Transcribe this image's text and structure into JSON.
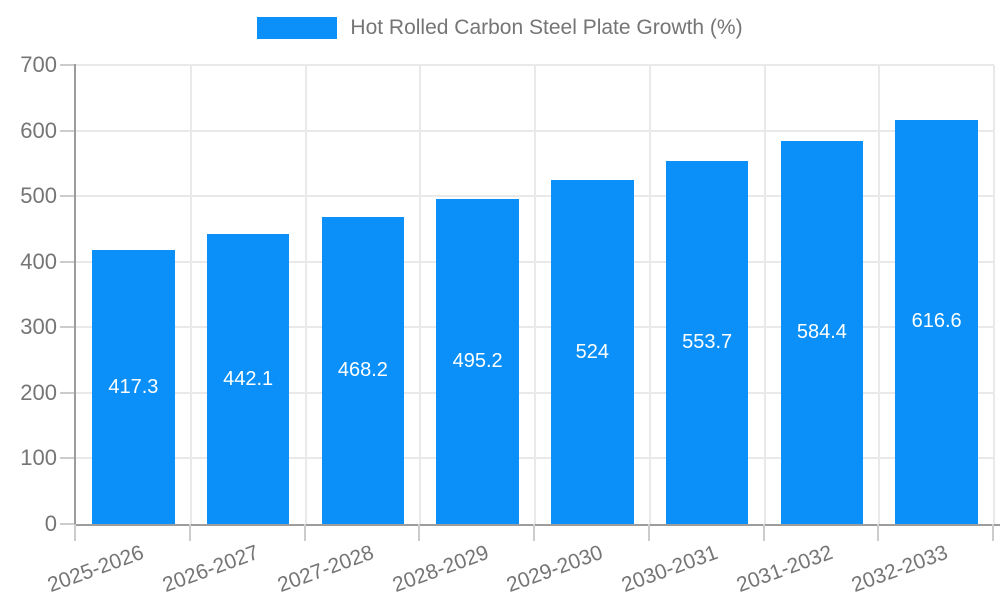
{
  "legend": {
    "label": "Hot Rolled Carbon Steel Plate Growth (%)"
  },
  "chart_data": {
    "type": "bar",
    "title": "Hot Rolled Carbon Steel Plate Growth (%)",
    "categories": [
      "2025-2026",
      "2026-2027",
      "2027-2028",
      "2028-2029",
      "2029-2030",
      "2030-2031",
      "2031-2032",
      "2032-2033"
    ],
    "values": [
      417.3,
      442.1,
      468.2,
      495.2,
      524,
      553.7,
      584.4,
      616.6
    ],
    "value_labels": [
      "417.3",
      "442.1",
      "468.2",
      "495.2",
      "524",
      "553.7",
      "584.4",
      "616.6"
    ],
    "xlabel": "",
    "ylabel": "",
    "ylim": [
      0,
      700
    ],
    "yticks": [
      0,
      100,
      200,
      300,
      400,
      500,
      600,
      700
    ],
    "grid": true,
    "legend_position": "top",
    "colors": {
      "bar": "#0a90f8",
      "value_label": "#ffffff",
      "axis_text": "#757575",
      "axis_line": "#9c9c9c",
      "gridline": "#e9e9e9",
      "tick": "#cccccc",
      "background": "#ffffff"
    }
  }
}
